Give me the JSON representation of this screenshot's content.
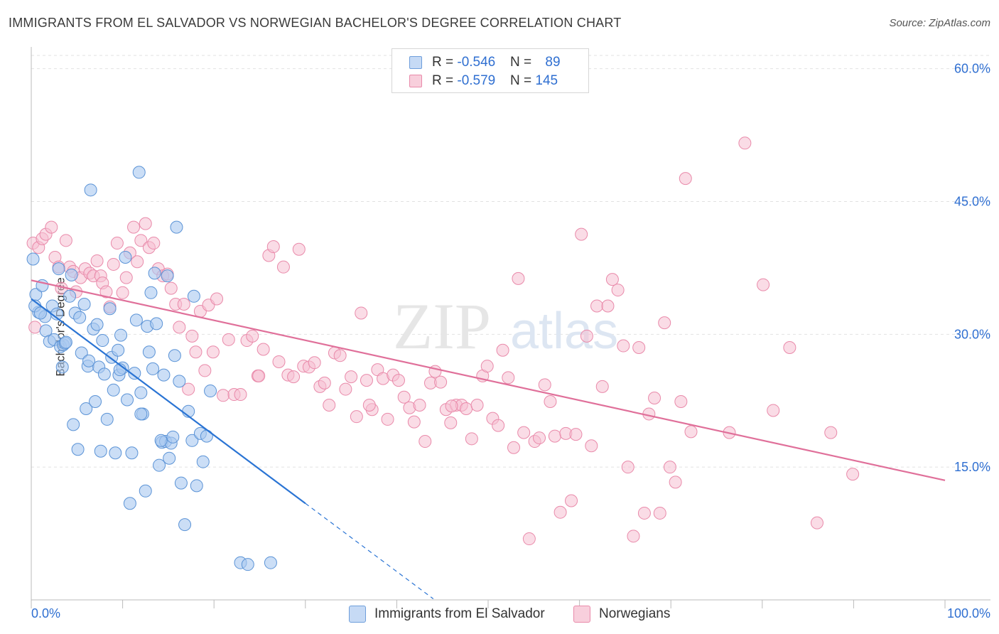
{
  "title": "IMMIGRANTS FROM EL SALVADOR VS NORWEGIAN BACHELOR'S DEGREE CORRELATION CHART",
  "source": "Source: ZipAtlas.com",
  "watermark": {
    "zip": "ZIP",
    "atlas": "atlas"
  },
  "legend": {
    "series1": {
      "r_label": "R = ",
      "r_value": "-0.546",
      "n_label": "N = ",
      "n_value": "89"
    },
    "series2": {
      "r_label": "R = ",
      "r_value": "-0.579",
      "n_label": "N = ",
      "n_value": "145"
    }
  },
  "colors": {
    "blue_fill": "#a9c8f0",
    "blue_stroke": "#5b93d6",
    "blue_line": "#2a74d4",
    "pink_fill": "#f6bfd1",
    "pink_stroke": "#e98aaa",
    "pink_line": "#e0709a",
    "accent_text": "#2f6fd1",
    "grid": "#e2e2e2"
  },
  "chart_data": {
    "type": "scatter",
    "title": "IMMIGRANTS FROM EL SALVADOR VS NORWEGIAN BACHELOR'S DEGREE CORRELATION CHART",
    "xlabel": "",
    "ylabel": "Bachelor's Degree",
    "xlim": [
      0,
      100
    ],
    "ylim": [
      0,
      61.5
    ],
    "x_tick_labels": [
      "0.0%",
      "100.0%"
    ],
    "y_ticks": [
      15,
      30,
      45,
      60
    ],
    "y_tick_labels": [
      "15.0%",
      "30.0%",
      "45.0%",
      "60.0%"
    ],
    "grid": true,
    "series": [
      {
        "name": "Immigrants from El Salvador",
        "color": "#a9c8f0",
        "trend": {
          "x0": 0,
          "y0": 34,
          "x1": 30,
          "y1": 10.9,
          "dashed_to_x": 44
        },
        "points": [
          [
            0.2,
            38.5
          ],
          [
            0.5,
            34.5
          ],
          [
            0.8,
            32.5
          ],
          [
            1.2,
            35.5
          ],
          [
            1.6,
            30.4
          ],
          [
            1.5,
            32.0
          ],
          [
            2.0,
            29.2
          ],
          [
            2.3,
            33.2
          ],
          [
            2.5,
            29.4
          ],
          [
            2.8,
            32.3
          ],
          [
            3.0,
            37.4
          ],
          [
            3.2,
            28.6
          ],
          [
            3.4,
            26.3
          ],
          [
            3.5,
            28.8
          ],
          [
            3.7,
            29.0
          ],
          [
            3.8,
            29.1
          ],
          [
            4.2,
            34.3
          ],
          [
            4.4,
            36.7
          ],
          [
            4.6,
            19.8
          ],
          [
            4.8,
            32.4
          ],
          [
            5.1,
            17.0
          ],
          [
            5.3,
            31.9
          ],
          [
            5.5,
            27.9
          ],
          [
            5.8,
            33.4
          ],
          [
            6.0,
            21.6
          ],
          [
            6.2,
            26.4
          ],
          [
            6.5,
            46.3
          ],
          [
            6.8,
            30.6
          ],
          [
            7.0,
            22.4
          ],
          [
            7.2,
            31.1
          ],
          [
            7.4,
            26.3
          ],
          [
            7.6,
            16.8
          ],
          [
            7.8,
            29.3
          ],
          [
            8.0,
            25.5
          ],
          [
            8.3,
            20.4
          ],
          [
            8.6,
            32.9
          ],
          [
            8.8,
            27.4
          ],
          [
            9.0,
            23.7
          ],
          [
            9.2,
            16.6
          ],
          [
            9.5,
            28.2
          ],
          [
            9.6,
            25.4
          ],
          [
            9.8,
            29.9
          ],
          [
            10.0,
            26.2
          ],
          [
            10.3,
            38.7
          ],
          [
            10.5,
            22.6
          ],
          [
            10.8,
            10.9
          ],
          [
            11.0,
            16.6
          ],
          [
            11.3,
            25.6
          ],
          [
            11.5,
            31.6
          ],
          [
            11.8,
            48.3
          ],
          [
            12.0,
            23.4
          ],
          [
            12.2,
            21.0
          ],
          [
            12.5,
            12.3
          ],
          [
            12.7,
            30.9
          ],
          [
            12.9,
            28.0
          ],
          [
            13.1,
            34.7
          ],
          [
            13.3,
            26.1
          ],
          [
            13.5,
            36.9
          ],
          [
            13.7,
            31.2
          ],
          [
            14.0,
            15.2
          ],
          [
            14.3,
            17.8
          ],
          [
            14.5,
            25.4
          ],
          [
            14.7,
            17.9
          ],
          [
            14.9,
            36.6
          ],
          [
            15.1,
            16.0
          ],
          [
            15.3,
            17.7
          ],
          [
            15.5,
            18.4
          ],
          [
            15.7,
            27.6
          ],
          [
            15.9,
            42.1
          ],
          [
            16.2,
            24.7
          ],
          [
            16.4,
            13.2
          ],
          [
            16.8,
            8.5
          ],
          [
            17.2,
            21.3
          ],
          [
            17.6,
            18.0
          ],
          [
            17.8,
            34.3
          ],
          [
            18.1,
            12.9
          ],
          [
            18.5,
            18.8
          ],
          [
            18.8,
            15.6
          ],
          [
            19.2,
            18.5
          ],
          [
            19.6,
            23.6
          ],
          [
            22.9,
            4.2
          ],
          [
            23.7,
            4.0
          ],
          [
            26.2,
            4.2
          ],
          [
            0.4,
            33.2
          ],
          [
            1.0,
            32.4
          ],
          [
            6.3,
            27.0
          ],
          [
            9.7,
            26.0
          ],
          [
            12.0,
            21.0
          ],
          [
            14.2,
            18.0
          ]
        ]
      },
      {
        "name": "Norwegians",
        "color": "#f6bfd1",
        "trend": {
          "x0": 0,
          "y0": 36.1,
          "x1": 100,
          "y1": 13.5
        },
        "points": [
          [
            0.2,
            40.3
          ],
          [
            0.4,
            30.8
          ],
          [
            0.8,
            39.8
          ],
          [
            1.2,
            40.8
          ],
          [
            1.6,
            41.3
          ],
          [
            2.2,
            42.1
          ],
          [
            2.6,
            38.7
          ],
          [
            3.0,
            37.6
          ],
          [
            3.3,
            35.2
          ],
          [
            3.8,
            40.6
          ],
          [
            4.2,
            37.6
          ],
          [
            4.6,
            37.1
          ],
          [
            4.9,
            34.8
          ],
          [
            5.4,
            36.4
          ],
          [
            5.9,
            37.4
          ],
          [
            6.4,
            36.9
          ],
          [
            6.8,
            36.6
          ],
          [
            7.2,
            38.3
          ],
          [
            7.6,
            36.6
          ],
          [
            7.8,
            35.8
          ],
          [
            8.2,
            34.8
          ],
          [
            8.6,
            33.1
          ],
          [
            9.0,
            37.9
          ],
          [
            9.4,
            40.3
          ],
          [
            10.0,
            34.7
          ],
          [
            10.4,
            36.4
          ],
          [
            10.8,
            39.2
          ],
          [
            11.2,
            42.1
          ],
          [
            11.6,
            38.2
          ],
          [
            12.0,
            40.6
          ],
          [
            12.5,
            42.5
          ],
          [
            12.9,
            39.8
          ],
          [
            13.4,
            40.3
          ],
          [
            13.9,
            37.4
          ],
          [
            14.4,
            36.6
          ],
          [
            14.9,
            36.8
          ],
          [
            15.3,
            35.2
          ],
          [
            15.8,
            33.4
          ],
          [
            16.2,
            30.8
          ],
          [
            16.7,
            33.4
          ],
          [
            17.2,
            23.8
          ],
          [
            17.6,
            29.8
          ],
          [
            18.0,
            28.0
          ],
          [
            18.5,
            32.6
          ],
          [
            19.0,
            25.9
          ],
          [
            19.4,
            33.3
          ],
          [
            19.9,
            28.0
          ],
          [
            20.3,
            34.0
          ],
          [
            21.0,
            23.1
          ],
          [
            21.6,
            29.4
          ],
          [
            22.2,
            23.2
          ],
          [
            22.9,
            23.2
          ],
          [
            23.6,
            29.3
          ],
          [
            24.2,
            29.8
          ],
          [
            24.8,
            25.3
          ],
          [
            25.4,
            28.3
          ],
          [
            26.0,
            38.9
          ],
          [
            26.5,
            39.9
          ],
          [
            27.1,
            26.9
          ],
          [
            27.6,
            37.6
          ],
          [
            28.1,
            25.4
          ],
          [
            28.7,
            25.2
          ],
          [
            29.3,
            39.6
          ],
          [
            29.8,
            26.4
          ],
          [
            30.4,
            26.3
          ],
          [
            31.0,
            26.8
          ],
          [
            31.6,
            24.1
          ],
          [
            32.1,
            24.5
          ],
          [
            32.6,
            22.0
          ],
          [
            33.2,
            27.9
          ],
          [
            33.8,
            27.6
          ],
          [
            34.4,
            23.8
          ],
          [
            35.0,
            25.2
          ],
          [
            35.6,
            20.7
          ],
          [
            36.1,
            32.4
          ],
          [
            36.7,
            24.8
          ],
          [
            37.3,
            21.5
          ],
          [
            37.9,
            26.0
          ],
          [
            38.5,
            25.0
          ],
          [
            39.0,
            20.4
          ],
          [
            39.6,
            25.4
          ],
          [
            40.2,
            24.8
          ],
          [
            40.8,
            22.9
          ],
          [
            41.4,
            21.7
          ],
          [
            41.9,
            20.1
          ],
          [
            42.5,
            22.0
          ],
          [
            43.1,
            17.9
          ],
          [
            43.7,
            24.5
          ],
          [
            44.2,
            25.8
          ],
          [
            44.8,
            24.6
          ],
          [
            45.4,
            21.5
          ],
          [
            45.9,
            20.0
          ],
          [
            46.5,
            22.0
          ],
          [
            47.1,
            22.0
          ],
          [
            47.6,
            21.6
          ],
          [
            48.2,
            18.2
          ],
          [
            48.8,
            22.0
          ],
          [
            49.4,
            25.3
          ],
          [
            49.9,
            26.4
          ],
          [
            50.5,
            20.5
          ],
          [
            51.1,
            19.7
          ],
          [
            51.6,
            28.2
          ],
          [
            52.2,
            25.1
          ],
          [
            52.8,
            17.2
          ],
          [
            53.3,
            36.3
          ],
          [
            53.9,
            18.9
          ],
          [
            54.5,
            6.9
          ],
          [
            55.1,
            17.9
          ],
          [
            55.6,
            18.3
          ],
          [
            56.2,
            24.3
          ],
          [
            56.8,
            22.4
          ],
          [
            57.3,
            18.5
          ],
          [
            57.9,
            9.9
          ],
          [
            58.5,
            18.8
          ],
          [
            59.1,
            11.2
          ],
          [
            59.6,
            18.7
          ],
          [
            60.2,
            41.3
          ],
          [
            60.8,
            29.8
          ],
          [
            61.3,
            17.4
          ],
          [
            61.9,
            33.2
          ],
          [
            62.5,
            24.1
          ],
          [
            63.1,
            33.2
          ],
          [
            63.6,
            36.2
          ],
          [
            64.2,
            35.0
          ],
          [
            64.8,
            28.7
          ],
          [
            65.3,
            15.0
          ],
          [
            65.9,
            7.2
          ],
          [
            66.5,
            28.5
          ],
          [
            67.1,
            9.8
          ],
          [
            67.6,
            21.0
          ],
          [
            68.2,
            22.8
          ],
          [
            68.8,
            9.8
          ],
          [
            69.3,
            31.3
          ],
          [
            69.9,
            15.0
          ],
          [
            70.5,
            13.3
          ],
          [
            71.1,
            22.4
          ],
          [
            71.6,
            47.6
          ],
          [
            72.2,
            19.0
          ],
          [
            76.4,
            18.9
          ],
          [
            78.1,
            51.6
          ],
          [
            80.1,
            35.6
          ],
          [
            81.2,
            21.4
          ],
          [
            83.0,
            28.5
          ],
          [
            86.0,
            8.7
          ],
          [
            87.5,
            18.9
          ],
          [
            89.9,
            14.2
          ],
          [
            24.9,
            25.3
          ],
          [
            37.0,
            22.0
          ],
          [
            46.0,
            21.9
          ]
        ]
      }
    ]
  }
}
